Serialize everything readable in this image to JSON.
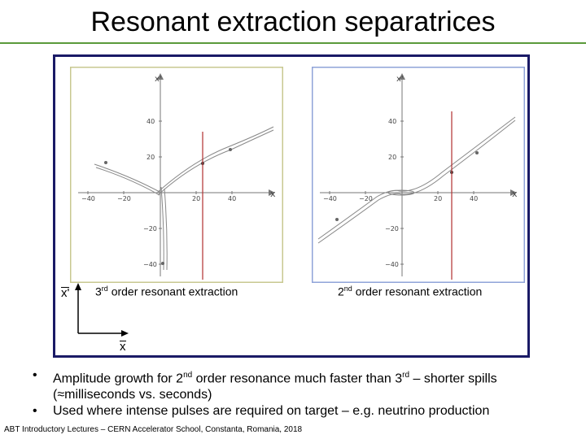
{
  "title": "Resonant extraction separatrices",
  "plots": {
    "left": {
      "caption_prefix": "3",
      "caption_sup": "rd",
      "caption_suffix": " order resonant extraction",
      "y_label": "x'",
      "x_label": "x",
      "x_ticks": [
        "−40",
        "−20",
        "20",
        "40"
      ],
      "y_ticks": [
        "40",
        "20",
        "−20",
        "−40"
      ]
    },
    "right": {
      "caption_prefix": "2",
      "caption_sup": "nd",
      "caption_suffix": " order resonant extraction",
      "y_label": "x'",
      "x_label": "x",
      "x_ticks": [
        "−40",
        "−20",
        "20",
        "40"
      ],
      "y_ticks": [
        "40",
        "20",
        "−20",
        "−40"
      ]
    }
  },
  "axes_inset": {
    "vertical_label": "x'",
    "horizontal_label": "x"
  },
  "bullets": [
    {
      "p1": "Amplitude growth for 2",
      "s1": "nd",
      "p2": " order resonance much faster than 3",
      "s2": "rd",
      "p3": " – shorter spills (≈milliseconds vs. seconds)"
    },
    {
      "text": "Used where intense pulses are required on target – e.g. neutrino production"
    }
  ],
  "footer": "ABT Introductory Lectures – CERN Accelerator School, Constanta, Romania, 2018",
  "colors": {
    "title_rule": "#5a9a3a",
    "frame": "#1a1a66",
    "left_border": "#c8c890",
    "right_border": "#8fa3d8",
    "marker_line": "#b03030"
  }
}
